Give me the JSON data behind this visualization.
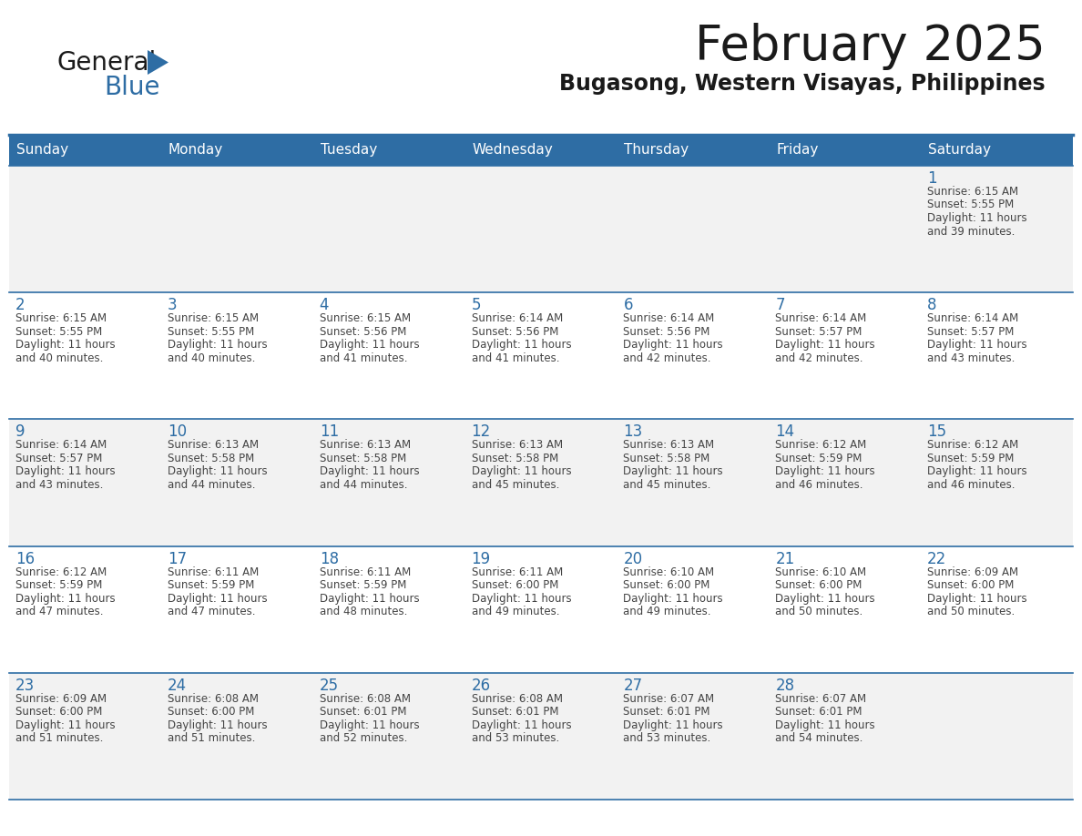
{
  "title": "February 2025",
  "subtitle": "Bugasong, Western Visayas, Philippines",
  "days_of_week": [
    "Sunday",
    "Monday",
    "Tuesday",
    "Wednesday",
    "Thursday",
    "Friday",
    "Saturday"
  ],
  "header_bg_color": "#2E6DA4",
  "header_text_color": "#FFFFFF",
  "cell_bg_odd": "#F2F2F2",
  "cell_bg_even": "#FFFFFF",
  "grid_line_color": "#2E6DA4",
  "day_number_color": "#2E6DA4",
  "cell_text_color": "#444444",
  "title_color": "#1a1a1a",
  "subtitle_color": "#1a1a1a",
  "logo_general_color": "#1a1a1a",
  "logo_blue_color": "#2E6DA4",
  "weeks": [
    [
      null,
      null,
      null,
      null,
      null,
      null,
      1
    ],
    [
      2,
      3,
      4,
      5,
      6,
      7,
      8
    ],
    [
      9,
      10,
      11,
      12,
      13,
      14,
      15
    ],
    [
      16,
      17,
      18,
      19,
      20,
      21,
      22
    ],
    [
      23,
      24,
      25,
      26,
      27,
      28,
      null
    ]
  ],
  "cell_data": {
    "1": {
      "sunrise": "6:15 AM",
      "sunset": "5:55 PM",
      "daylight": "11 hours and 39 minutes."
    },
    "2": {
      "sunrise": "6:15 AM",
      "sunset": "5:55 PM",
      "daylight": "11 hours and 40 minutes."
    },
    "3": {
      "sunrise": "6:15 AM",
      "sunset": "5:55 PM",
      "daylight": "11 hours and 40 minutes."
    },
    "4": {
      "sunrise": "6:15 AM",
      "sunset": "5:56 PM",
      "daylight": "11 hours and 41 minutes."
    },
    "5": {
      "sunrise": "6:14 AM",
      "sunset": "5:56 PM",
      "daylight": "11 hours and 41 minutes."
    },
    "6": {
      "sunrise": "6:14 AM",
      "sunset": "5:56 PM",
      "daylight": "11 hours and 42 minutes."
    },
    "7": {
      "sunrise": "6:14 AM",
      "sunset": "5:57 PM",
      "daylight": "11 hours and 42 minutes."
    },
    "8": {
      "sunrise": "6:14 AM",
      "sunset": "5:57 PM",
      "daylight": "11 hours and 43 minutes."
    },
    "9": {
      "sunrise": "6:14 AM",
      "sunset": "5:57 PM",
      "daylight": "11 hours and 43 minutes."
    },
    "10": {
      "sunrise": "6:13 AM",
      "sunset": "5:58 PM",
      "daylight": "11 hours and 44 minutes."
    },
    "11": {
      "sunrise": "6:13 AM",
      "sunset": "5:58 PM",
      "daylight": "11 hours and 44 minutes."
    },
    "12": {
      "sunrise": "6:13 AM",
      "sunset": "5:58 PM",
      "daylight": "11 hours and 45 minutes."
    },
    "13": {
      "sunrise": "6:13 AM",
      "sunset": "5:58 PM",
      "daylight": "11 hours and 45 minutes."
    },
    "14": {
      "sunrise": "6:12 AM",
      "sunset": "5:59 PM",
      "daylight": "11 hours and 46 minutes."
    },
    "15": {
      "sunrise": "6:12 AM",
      "sunset": "5:59 PM",
      "daylight": "11 hours and 46 minutes."
    },
    "16": {
      "sunrise": "6:12 AM",
      "sunset": "5:59 PM",
      "daylight": "11 hours and 47 minutes."
    },
    "17": {
      "sunrise": "6:11 AM",
      "sunset": "5:59 PM",
      "daylight": "11 hours and 47 minutes."
    },
    "18": {
      "sunrise": "6:11 AM",
      "sunset": "5:59 PM",
      "daylight": "11 hours and 48 minutes."
    },
    "19": {
      "sunrise": "6:11 AM",
      "sunset": "6:00 PM",
      "daylight": "11 hours and 49 minutes."
    },
    "20": {
      "sunrise": "6:10 AM",
      "sunset": "6:00 PM",
      "daylight": "11 hours and 49 minutes."
    },
    "21": {
      "sunrise": "6:10 AM",
      "sunset": "6:00 PM",
      "daylight": "11 hours and 50 minutes."
    },
    "22": {
      "sunrise": "6:09 AM",
      "sunset": "6:00 PM",
      "daylight": "11 hours and 50 minutes."
    },
    "23": {
      "sunrise": "6:09 AM",
      "sunset": "6:00 PM",
      "daylight": "11 hours and 51 minutes."
    },
    "24": {
      "sunrise": "6:08 AM",
      "sunset": "6:00 PM",
      "daylight": "11 hours and 51 minutes."
    },
    "25": {
      "sunrise": "6:08 AM",
      "sunset": "6:01 PM",
      "daylight": "11 hours and 52 minutes."
    },
    "26": {
      "sunrise": "6:08 AM",
      "sunset": "6:01 PM",
      "daylight": "11 hours and 53 minutes."
    },
    "27": {
      "sunrise": "6:07 AM",
      "sunset": "6:01 PM",
      "daylight": "11 hours and 53 minutes."
    },
    "28": {
      "sunrise": "6:07 AM",
      "sunset": "6:01 PM",
      "daylight": "11 hours and 54 minutes."
    }
  }
}
